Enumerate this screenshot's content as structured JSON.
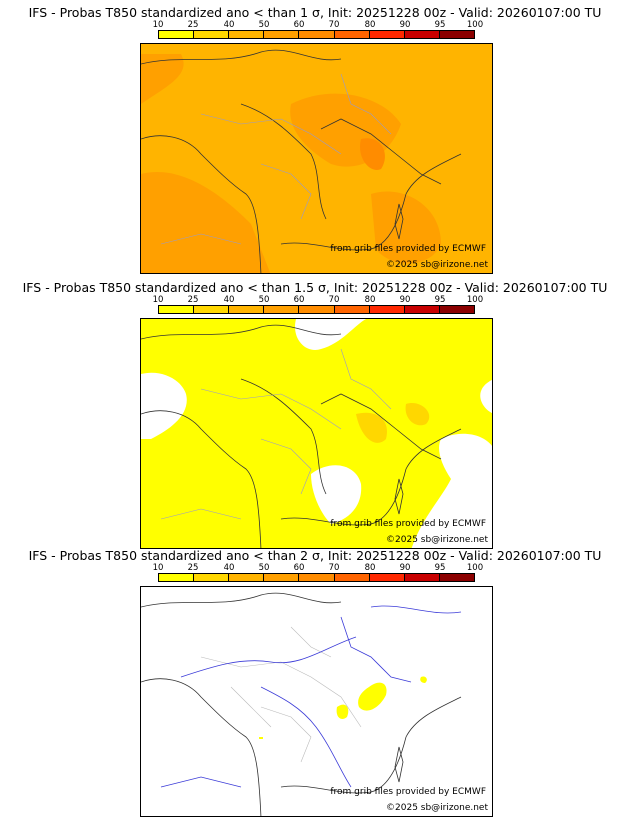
{
  "colorbar": {
    "ticks": [
      "10",
      "25",
      "40",
      "50",
      "60",
      "70",
      "80",
      "90",
      "95",
      "100"
    ],
    "colors": [
      "#ffff00",
      "#ffd700",
      "#ffb400",
      "#ffa000",
      "#ff8c00",
      "#ff6400",
      "#ff2800",
      "#c80000",
      "#8b0000",
      "#4b0000"
    ]
  },
  "credits": {
    "source": "from grib files provided by ECMWF",
    "copyright": "©2025 sb@irizone.net"
  },
  "panels": [
    {
      "title": "IFS - Probas T850  standardized ano < than 1 σ, Init: 20251228 00z - Valid: 20260107:00 TU",
      "threshold_sigma": 1
    },
    {
      "title": "IFS - Probas T850  standardized ano < than 1.5 σ, Init: 20251228 00z - Valid: 20260107:00 TU",
      "threshold_sigma": 1.5
    },
    {
      "title": "IFS - Probas T850  standardized ano < than 2 σ, Init: 20251228 00z - Valid: 20260107:00 TU",
      "threshold_sigma": 2
    }
  ]
}
